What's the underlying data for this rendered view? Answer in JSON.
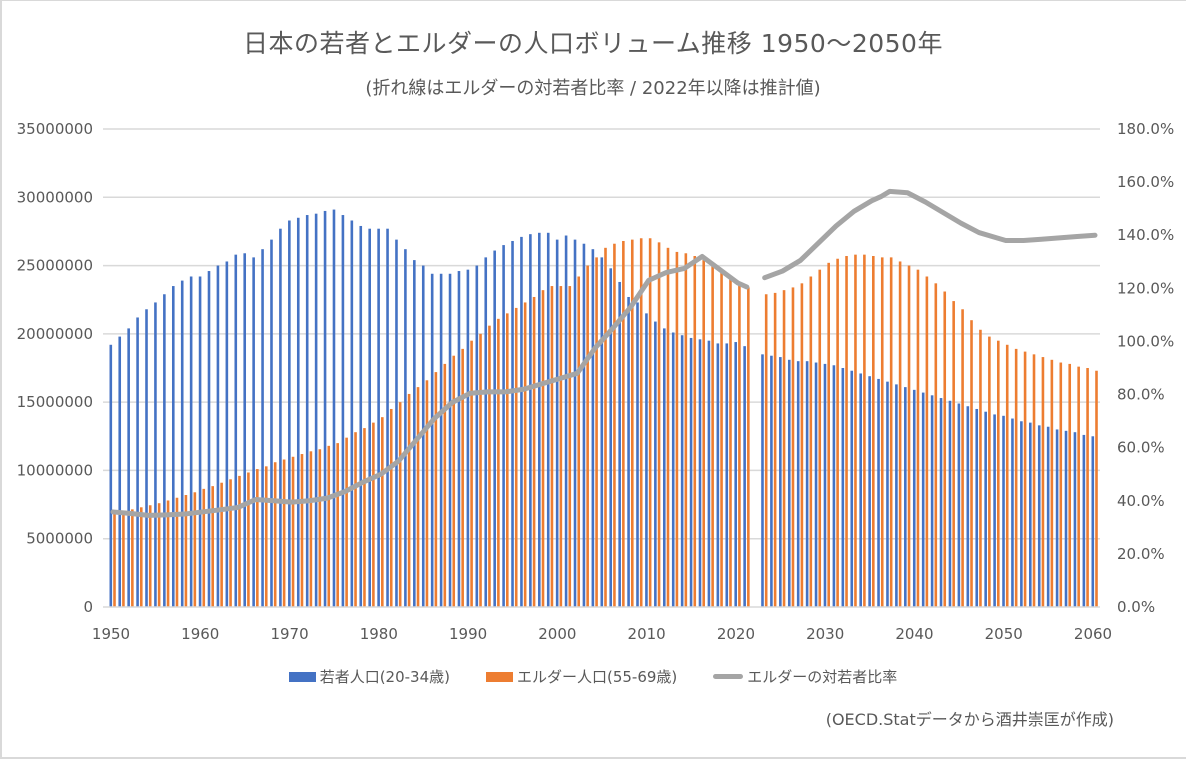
{
  "chart_data": {
    "type": "bar",
    "title": "日本の若者とエルダーの人口ボリューム推移 1950〜2050年",
    "subtitle": "(折れ線はエルダーの対若者比率 / 2022年以降は推計値)",
    "source_note": "(OECD.Statデータから酒井崇匡が作成)",
    "xlabel": "",
    "ylabel_left": "",
    "ylabel_right": "",
    "x_start": 1950,
    "x_end": 2060,
    "x_ticks": [
      "1950",
      "1960",
      "1970",
      "1980",
      "1990",
      "2000",
      "2010",
      "2020",
      "2030",
      "2040",
      "2050",
      "2060"
    ],
    "x_tick_values": [
      1950,
      1960,
      1970,
      1980,
      1990,
      2000,
      2010,
      2020,
      2030,
      2040,
      2050,
      2060
    ],
    "y_left_ticks": [
      "0",
      "5000000",
      "10000000",
      "15000000",
      "20000000",
      "25000000",
      "30000000",
      "35000000"
    ],
    "y_left_tick_values": [
      0,
      5000000,
      10000000,
      15000000,
      20000000,
      25000000,
      30000000,
      35000000
    ],
    "ylim_left": [
      0,
      35000000
    ],
    "y_right_ticks": [
      "0.0%",
      "20.0%",
      "40.0%",
      "60.0%",
      "80.0%",
      "100.0%",
      "120.0%",
      "140.0%",
      "160.0%",
      "180.0%"
    ],
    "y_right_tick_values": [
      0,
      20,
      40,
      60,
      80,
      100,
      120,
      140,
      160,
      180
    ],
    "ylim_right": [
      0,
      180
    ],
    "grid": true,
    "legend_position": "bottom",
    "missing_year": 2022,
    "colors": {
      "young": "#4472c4",
      "elder": "#ed7d31",
      "ratio": "#a5a5a5",
      "grid": "#d9d9d9",
      "text": "#595959"
    },
    "series": [
      {
        "name": "若者人口(20-34歳)",
        "key": "young",
        "kind": "bar",
        "years": [
          1950,
          1951,
          1952,
          1953,
          1954,
          1955,
          1956,
          1957,
          1958,
          1959,
          1960,
          1961,
          1962,
          1963,
          1964,
          1965,
          1966,
          1967,
          1968,
          1969,
          1970,
          1971,
          1972,
          1973,
          1974,
          1975,
          1976,
          1977,
          1978,
          1979,
          1980,
          1981,
          1982,
          1983,
          1984,
          1985,
          1986,
          1987,
          1988,
          1989,
          1990,
          1991,
          1992,
          1993,
          1994,
          1995,
          1996,
          1997,
          1998,
          1999,
          2000,
          2001,
          2002,
          2003,
          2004,
          2005,
          2006,
          2007,
          2008,
          2009,
          2010,
          2011,
          2012,
          2013,
          2014,
          2015,
          2016,
          2017,
          2018,
          2019,
          2020,
          2021,
          2023,
          2024,
          2025,
          2026,
          2027,
          2028,
          2029,
          2030,
          2031,
          2032,
          2033,
          2034,
          2035,
          2036,
          2037,
          2038,
          2039,
          2040,
          2041,
          2042,
          2043,
          2044,
          2045,
          2046,
          2047,
          2048,
          2049,
          2050,
          2051,
          2052,
          2053,
          2054,
          2055,
          2056,
          2057,
          2058,
          2059,
          2060
        ],
        "values": [
          19200000,
          19800000,
          20400000,
          21200000,
          21800000,
          22300000,
          22900000,
          23500000,
          23900000,
          24200000,
          24200000,
          24600000,
          25000000,
          25300000,
          25800000,
          25900000,
          25600000,
          26200000,
          26900000,
          27700000,
          28300000,
          28500000,
          28700000,
          28800000,
          29000000,
          29100000,
          28700000,
          28300000,
          27900000,
          27700000,
          27700000,
          27700000,
          26900000,
          26200000,
          25400000,
          25000000,
          24400000,
          24400000,
          24400000,
          24600000,
          24700000,
          25000000,
          25600000,
          26100000,
          26500000,
          26800000,
          27100000,
          27300000,
          27400000,
          27400000,
          26900000,
          27200000,
          26900000,
          26600000,
          26200000,
          25600000,
          24800000,
          23800000,
          22700000,
          22300000,
          21500000,
          20900000,
          20400000,
          20100000,
          19900000,
          19700000,
          19600000,
          19500000,
          19300000,
          19300000,
          19400000,
          19100000,
          18500000,
          18400000,
          18300000,
          18100000,
          18000000,
          18000000,
          17900000,
          17800000,
          17700000,
          17500000,
          17300000,
          17100000,
          16900000,
          16700000,
          16500000,
          16300000,
          16100000,
          15900000,
          15700000,
          15500000,
          15300000,
          15100000,
          14900000,
          14700000,
          14500000,
          14300000,
          14100000,
          14000000,
          13800000,
          13600000,
          13500000,
          13300000,
          13200000,
          13000000,
          12900000,
          12800000,
          12600000,
          12500000
        ]
      },
      {
        "name": "エルダー人口(55-69歳)",
        "key": "elder",
        "kind": "bar",
        "years": [
          1950,
          1951,
          1952,
          1953,
          1954,
          1955,
          1956,
          1957,
          1958,
          1959,
          1960,
          1961,
          1962,
          1963,
          1964,
          1965,
          1966,
          1967,
          1968,
          1969,
          1970,
          1971,
          1972,
          1973,
          1974,
          1975,
          1976,
          1977,
          1978,
          1979,
          1980,
          1981,
          1982,
          1983,
          1984,
          1985,
          1986,
          1987,
          1988,
          1989,
          1990,
          1991,
          1992,
          1993,
          1994,
          1995,
          1996,
          1997,
          1998,
          1999,
          2000,
          2001,
          2002,
          2003,
          2004,
          2005,
          2006,
          2007,
          2008,
          2009,
          2010,
          2011,
          2012,
          2013,
          2014,
          2015,
          2016,
          2017,
          2018,
          2019,
          2020,
          2021,
          2023,
          2024,
          2025,
          2026,
          2027,
          2028,
          2029,
          2030,
          2031,
          2032,
          2033,
          2034,
          2035,
          2036,
          2037,
          2038,
          2039,
          2040,
          2041,
          2042,
          2043,
          2044,
          2045,
          2046,
          2047,
          2048,
          2049,
          2050,
          2051,
          2052,
          2053,
          2054,
          2055,
          2056,
          2057,
          2058,
          2059,
          2060
        ],
        "values": [
          6900000,
          7000000,
          7150000,
          7300000,
          7450000,
          7600000,
          7800000,
          8000000,
          8200000,
          8400000,
          8650000,
          8850000,
          9100000,
          9350000,
          9600000,
          9850000,
          10100000,
          10300000,
          10600000,
          10800000,
          11000000,
          11200000,
          11400000,
          11550000,
          11800000,
          12000000,
          12400000,
          12800000,
          13100000,
          13500000,
          13900000,
          14500000,
          15000000,
          15600000,
          16100000,
          16600000,
          17200000,
          17800000,
          18400000,
          18900000,
          19500000,
          20000000,
          20600000,
          21100000,
          21500000,
          21900000,
          22300000,
          22700000,
          23200000,
          23500000,
          23500000,
          23500000,
          24200000,
          25000000,
          25600000,
          26300000,
          26600000,
          26800000,
          26900000,
          27000000,
          27000000,
          26700000,
          26300000,
          26000000,
          25900000,
          25700000,
          25400000,
          25100000,
          24700000,
          24200000,
          23700000,
          23400000,
          22900000,
          23000000,
          23200000,
          23400000,
          23700000,
          24200000,
          24700000,
          25200000,
          25500000,
          25700000,
          25800000,
          25800000,
          25700000,
          25600000,
          25600000,
          25300000,
          25000000,
          24700000,
          24200000,
          23700000,
          23100000,
          22400000,
          21800000,
          21000000,
          20300000,
          19800000,
          19500000,
          19200000,
          18900000,
          18700000,
          18500000,
          18300000,
          18100000,
          17900000,
          17800000,
          17600000,
          17500000,
          17300000
        ]
      },
      {
        "name": "エルダーの対若者比率",
        "key": "ratio",
        "kind": "line",
        "unit": "%",
        "segments": [
          {
            "years": [
              1950,
              1952,
              1954,
              1956,
              1958,
              1960,
              1962,
              1964,
              1966,
              1968,
              1970,
              1972,
              1974,
              1976,
              1978,
              1980,
              1982,
              1984,
              1986,
              1988,
              1990,
              1992,
              1994,
              1996,
              1998,
              2000,
              2002,
              2004,
              2006,
              2008,
              2010,
              2012,
              2014,
              2016,
              2018,
              2020,
              2021
            ],
            "values": [
              35.8,
              35.2,
              34.5,
              34.7,
              35.0,
              35.8,
              36.6,
              37.5,
              40.5,
              40.0,
              39.5,
              40.0,
              41.0,
              43.5,
              47.0,
              50.0,
              55.0,
              63.0,
              71.0,
              77.0,
              80.5,
              81.0,
              81.0,
              82.0,
              84.0,
              86.0,
              88.0,
              97.5,
              105.0,
              113.0,
              123.0,
              126.0,
              127.5,
              132.0,
              127.0,
              122.0,
              120.5
            ]
          },
          {
            "years": [
              2023,
              2025,
              2027,
              2029,
              2031,
              2033,
              2035,
              2036,
              2037,
              2039,
              2041,
              2043,
              2045,
              2047,
              2049,
              2050,
              2052,
              2054,
              2056,
              2058,
              2060
            ],
            "values": [
              124.0,
              126.5,
              130.5,
              137.0,
              143.5,
              149.0,
              153.0,
              154.5,
              156.5,
              156.0,
              152.5,
              148.5,
              144.5,
              141.0,
              139.0,
              138.0,
              138.0,
              138.5,
              139.0,
              139.5,
              140.0
            ]
          }
        ]
      }
    ]
  }
}
